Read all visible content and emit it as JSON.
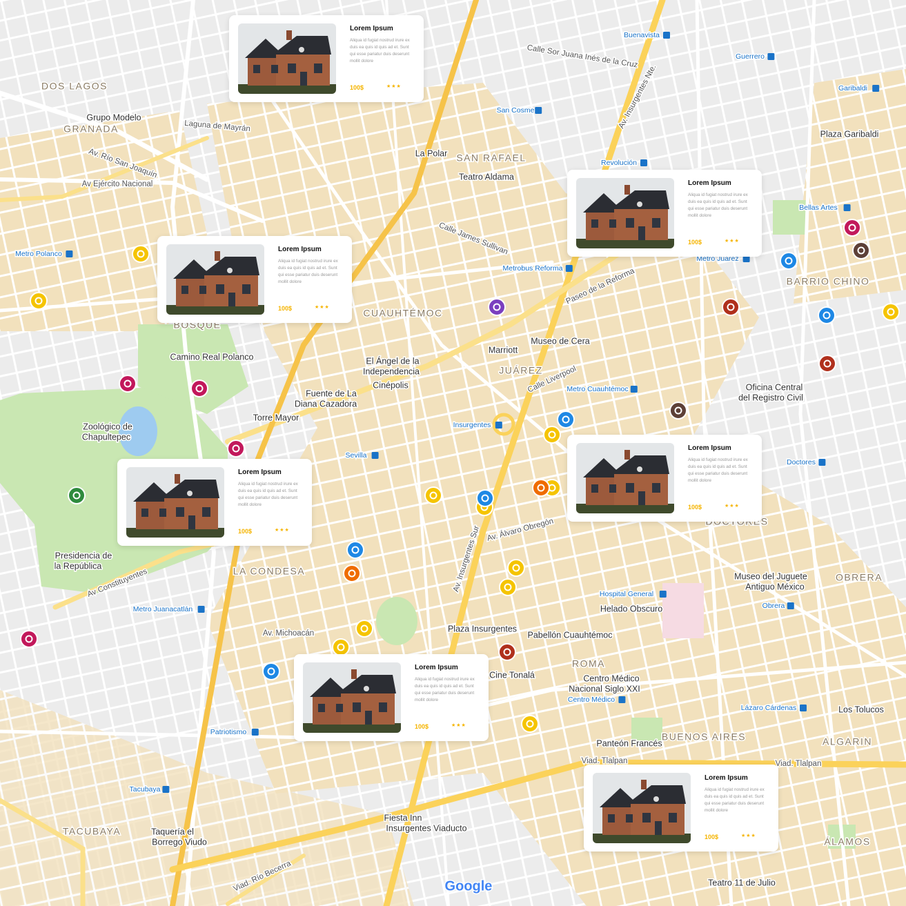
{
  "map": {
    "neighborhoods": [
      "DOS LAGOS",
      "GRANADA",
      "SAN RAFAEL",
      "CUAUHTÉMOC",
      "JUÁREZ",
      "BARRIO CHINO",
      "LA CONDESA",
      "DOCTORES",
      "OBRERA",
      "ROMA",
      "BUENOS AIRES",
      "ALGARIN",
      "ÁLAMOS",
      "TACUBAYA",
      "BOSQUE"
    ],
    "places": [
      "Grupo Modelo",
      "Teatro Aldama",
      "La Polar",
      "El Ángel de la",
      "Independencia",
      "Cinépolis",
      "Fuente de La",
      "Diana Cazadora",
      "Torre Mayor",
      "Camino Real Polanco",
      "Zoológico de",
      "Chapultepec",
      "Presidencia de",
      "la República",
      "Museo de Cera",
      "Marriott",
      "Oficina Central",
      "del Registro Civil",
      "Museo del Juguete",
      "Antiguo México",
      "Helado Obscuro",
      "Plaza Insurgentes",
      "Pabellón Cuauhtémoc",
      "Centro Médico",
      "Nacional Siglo XXI",
      "Cine Tonalá",
      "Panteón Francés",
      "Los Tolucos",
      "Teatro 11 de Julio",
      "Taquería el",
      "Borrego Viudo",
      "Fiesta Inn",
      "Insurgentes Viaducto",
      "Plaza Garibaldi"
    ],
    "streets": [
      "Av. Río San Joaquín",
      "Av Ejército Nacional",
      "Av. Insurgentes Sur",
      "Av. Insurgentes Nte.",
      "Paseo de la Reforma",
      "Av Constituyentes",
      "Viad. Tlalpan",
      "Viad. Tlalpan",
      "Calle Liverpool",
      "Calle Sor Juana Inés de la Cruz",
      "Av. Michoacán",
      "Calle James Sullivan",
      "Laguna de Mayrán",
      "Av. Álvaro Obregón",
      "Viad. Río Becerra"
    ],
    "metro": [
      "Metro Polanco",
      "Metrobus Reforma",
      "Metro Juárez",
      "Metro Cuauhtémoc",
      "Insurgentes",
      "Sevilla",
      "Metro Juanacatlán",
      "Hospital General",
      "Centro Médico",
      "Patriotismo",
      "Tacubaya",
      "Lázaro Cárdenas",
      "San Cosme",
      "Revolución",
      "Bellas Artes",
      "Doctores",
      "Obrera",
      "Garibaldi",
      "Buenavista",
      "Guerrero"
    ],
    "logo": "Google"
  },
  "cards": [
    {
      "title": "Lorem Ipsum",
      "text": "Aliqua id fugiat nostrud irure ex duis ea quis id quis ad et. Sunt qui esse pariatur duis deserunt mollit dolore",
      "price": "100$",
      "rating": "★★★"
    },
    {
      "title": "Lorem Ipsum",
      "text": "Aliqua id fugiat nostrud irure ex duis ea quis id quis ad et. Sunt qui esse pariatur duis deserunt mollit dolore",
      "price": "100$",
      "rating": "★★★"
    },
    {
      "title": "Lorem Ipsum",
      "text": "Aliqua id fugiat nostrud irure ex duis ea quis id quis ad et. Sunt qui esse pariatur duis deserunt mollit dolore",
      "price": "100$",
      "rating": "★★★"
    },
    {
      "title": "Lorem Ipsum",
      "text": "Aliqua id fugiat nostrud irure ex duis ea quis id quis ad et. Sunt qui esse pariatur duis deserunt mollit dolore",
      "price": "100$",
      "rating": "★★★"
    },
    {
      "title": "Lorem Ipsum",
      "text": "Aliqua id fugiat nostrud irure ex duis ea quis id quis ad et. Sunt qui esse pariatur duis deserunt mollit dolore",
      "price": "100$",
      "rating": "★★★"
    },
    {
      "title": "Lorem Ipsum",
      "text": "Aliqua id fugiat nostrud irure ex duis ea quis id quis ad et. Sunt qui esse pariatur duis deserunt mollit dolore",
      "price": "100$",
      "rating": "★★★"
    },
    {
      "title": "Lorem Ipsum",
      "text": "Aliqua id fugiat nostrud irure ex duis ea quis id quis ad et. Sunt qui esse pariatur duis deserunt mollit dolore",
      "price": "100$",
      "rating": "★★★"
    }
  ]
}
